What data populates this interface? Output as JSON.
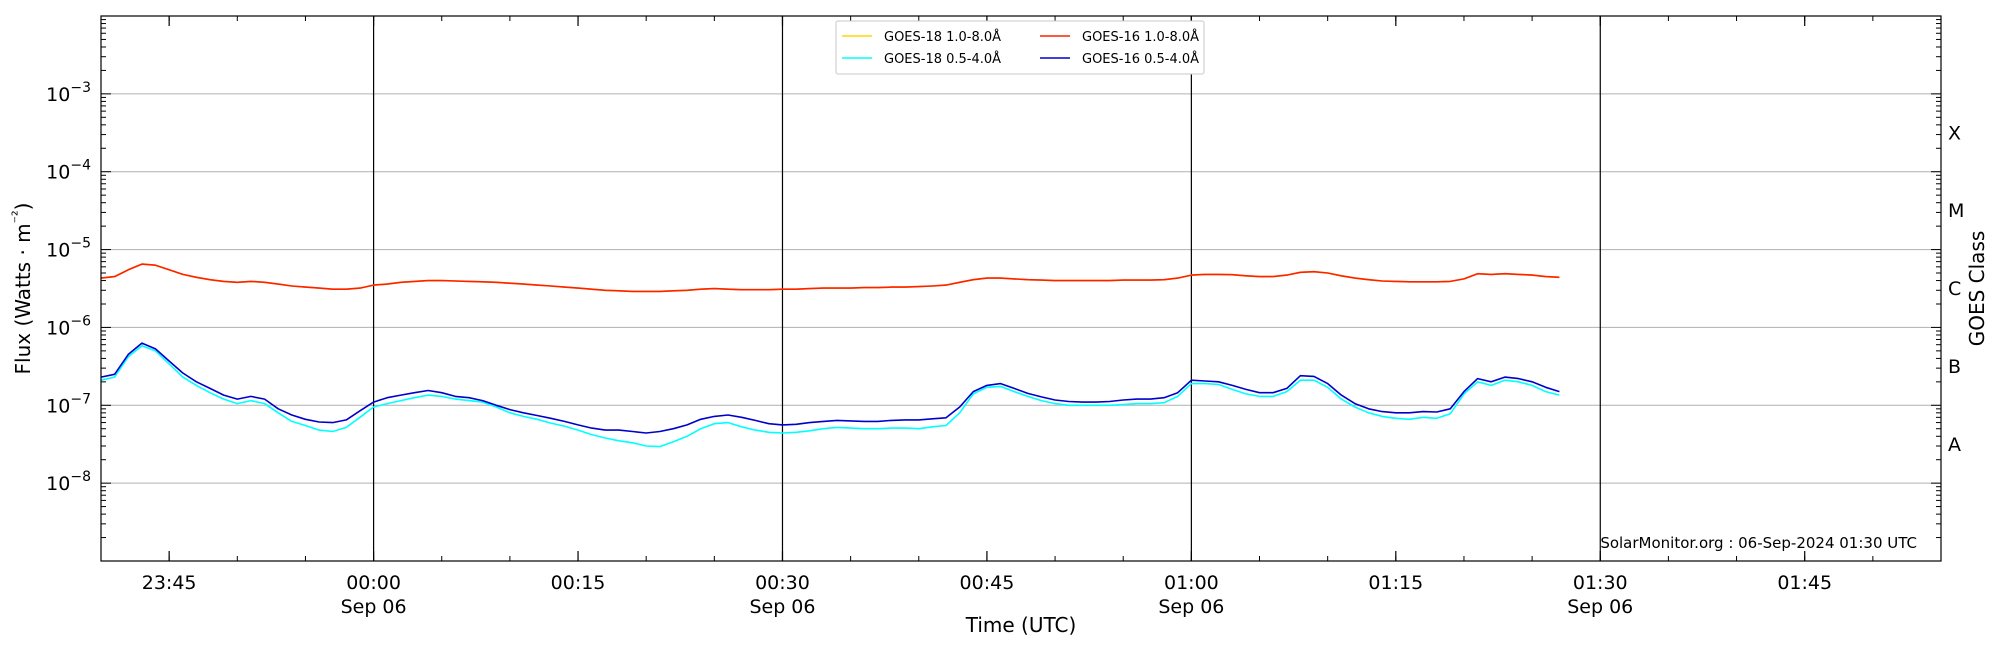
{
  "chart_data": {
    "type": "line",
    "xlabel": "Time (UTC)",
    "ylabel": "Flux (Watts · m⁻²)",
    "y2label": "GOES Class",
    "yscale": "log",
    "ylim": [
      1e-09,
      0.01
    ],
    "xlim": [
      "2024-09-05T23:40",
      "2024-09-06T01:55"
    ],
    "grid": "horizontal",
    "legend_position": "top-center",
    "y_ticks": [
      {
        "value": 1e-08,
        "base": "10",
        "exp": "−8"
      },
      {
        "value": 1e-07,
        "base": "10",
        "exp": "−7"
      },
      {
        "value": 1e-06,
        "base": "10",
        "exp": "−6"
      },
      {
        "value": 1e-05,
        "base": "10",
        "exp": "−5"
      },
      {
        "value": 0.0001,
        "base": "10",
        "exp": "−4"
      },
      {
        "value": 0.001,
        "base": "10",
        "exp": "−3"
      }
    ],
    "x_ticks": [
      {
        "time": "23:45",
        "label": "23:45",
        "date": ""
      },
      {
        "time": "00:00",
        "label": "00:00",
        "date": "Sep 06"
      },
      {
        "time": "00:15",
        "label": "00:15",
        "date": ""
      },
      {
        "time": "00:30",
        "label": "00:30",
        "date": "Sep 06"
      },
      {
        "time": "00:45",
        "label": "00:45",
        "date": ""
      },
      {
        "time": "01:00",
        "label": "01:00",
        "date": "Sep 06"
      },
      {
        "time": "01:15",
        "label": "01:15",
        "date": ""
      },
      {
        "time": "01:30",
        "label": "01:30",
        "date": "Sep 06"
      },
      {
        "time": "01:45",
        "label": "01:45",
        "date": ""
      }
    ],
    "vertical_lines": [
      "00:00",
      "00:30",
      "01:00",
      "01:30"
    ],
    "goes_classes": [
      {
        "label": "A",
        "value": 1e-08
      },
      {
        "label": "B",
        "value": 1e-07
      },
      {
        "label": "C",
        "value": 1e-06
      },
      {
        "label": "M",
        "value": 1e-05
      },
      {
        "label": "X",
        "value": 0.0001
      }
    ],
    "times": [
      "23:40",
      "23:41",
      "23:42",
      "23:43",
      "23:44",
      "23:45",
      "23:46",
      "23:47",
      "23:48",
      "23:49",
      "23:50",
      "23:51",
      "23:52",
      "23:53",
      "23:54",
      "23:55",
      "23:56",
      "23:57",
      "23:58",
      "23:59",
      "00:00",
      "00:01",
      "00:02",
      "00:03",
      "00:04",
      "00:05",
      "00:06",
      "00:07",
      "00:08",
      "00:09",
      "00:10",
      "00:11",
      "00:12",
      "00:13",
      "00:14",
      "00:15",
      "00:16",
      "00:17",
      "00:18",
      "00:19",
      "00:20",
      "00:21",
      "00:22",
      "00:23",
      "00:24",
      "00:25",
      "00:26",
      "00:27",
      "00:28",
      "00:29",
      "00:30",
      "00:31",
      "00:32",
      "00:33",
      "00:34",
      "00:35",
      "00:36",
      "00:37",
      "00:38",
      "00:39",
      "00:40",
      "00:41",
      "00:42",
      "00:43",
      "00:44",
      "00:45",
      "00:46",
      "00:47",
      "00:48",
      "00:49",
      "00:50",
      "00:51",
      "00:52",
      "00:53",
      "00:54",
      "00:55",
      "00:56",
      "00:57",
      "00:58",
      "00:59",
      "01:00",
      "01:01",
      "01:02",
      "01:03",
      "01:04",
      "01:05",
      "01:06",
      "01:07",
      "01:08",
      "01:09",
      "01:10",
      "01:11",
      "01:12",
      "01:13",
      "01:14",
      "01:15",
      "01:16",
      "01:17",
      "01:18",
      "01:19",
      "01:20",
      "01:21",
      "01:22",
      "01:23",
      "01:24",
      "01:25",
      "01:26",
      "01:27"
    ],
    "series": [
      {
        "name": "GOES-18 1.0-8.0Å",
        "color": "#ffd700",
        "values": [
          4.3e-06,
          4.5e-06,
          5.5e-06,
          6.5e-06,
          6.3e-06,
          5.5e-06,
          4.8e-06,
          4.4e-06,
          4.1e-06,
          3.9e-06,
          3.8e-06,
          3.9e-06,
          3.8e-06,
          3.6e-06,
          3.4e-06,
          3.3e-06,
          3.2e-06,
          3.1e-06,
          3.1e-06,
          3.2e-06,
          3.5e-06,
          3.6e-06,
          3.8e-06,
          3.9e-06,
          4e-06,
          4e-06,
          3.95e-06,
          3.9e-06,
          3.85e-06,
          3.8e-06,
          3.7e-06,
          3.6e-06,
          3.5e-06,
          3.4e-06,
          3.3e-06,
          3.2e-06,
          3.1e-06,
          3e-06,
          2.95e-06,
          2.9e-06,
          2.9e-06,
          2.9e-06,
          2.95e-06,
          3e-06,
          3.1e-06,
          3.15e-06,
          3.1e-06,
          3.05e-06,
          3.05e-06,
          3.05e-06,
          3.1e-06,
          3.1e-06,
          3.15e-06,
          3.2e-06,
          3.2e-06,
          3.2e-06,
          3.25e-06,
          3.25e-06,
          3.3e-06,
          3.3e-06,
          3.35e-06,
          3.4e-06,
          3.5e-06,
          3.8e-06,
          4.1e-06,
          4.3e-06,
          4.3e-06,
          4.2e-06,
          4.1e-06,
          4.05e-06,
          4e-06,
          4e-06,
          4e-06,
          4e-06,
          4e-06,
          4.05e-06,
          4.05e-06,
          4.05e-06,
          4.1e-06,
          4.3e-06,
          4.7e-06,
          4.8e-06,
          4.8e-06,
          4.75e-06,
          4.6e-06,
          4.5e-06,
          4.5e-06,
          4.7e-06,
          5.1e-06,
          5.2e-06,
          5e-06,
          4.6e-06,
          4.3e-06,
          4.1e-06,
          3.95e-06,
          3.9e-06,
          3.85e-06,
          3.85e-06,
          3.85e-06,
          3.9e-06,
          4.2e-06,
          4.9e-06,
          4.8e-06,
          4.9e-06,
          4.8e-06,
          4.7e-06,
          4.5e-06,
          4.4e-06
        ]
      },
      {
        "name": "GOES-16 1.0-8.0Å",
        "color": "#ff2000",
        "values": [
          4.3e-06,
          4.5e-06,
          5.5e-06,
          6.5e-06,
          6.3e-06,
          5.5e-06,
          4.8e-06,
          4.4e-06,
          4.1e-06,
          3.9e-06,
          3.8e-06,
          3.9e-06,
          3.8e-06,
          3.6e-06,
          3.4e-06,
          3.3e-06,
          3.2e-06,
          3.1e-06,
          3.1e-06,
          3.2e-06,
          3.5e-06,
          3.6e-06,
          3.8e-06,
          3.9e-06,
          4e-06,
          4e-06,
          3.95e-06,
          3.9e-06,
          3.85e-06,
          3.8e-06,
          3.7e-06,
          3.6e-06,
          3.5e-06,
          3.4e-06,
          3.3e-06,
          3.2e-06,
          3.1e-06,
          3e-06,
          2.95e-06,
          2.9e-06,
          2.9e-06,
          2.9e-06,
          2.95e-06,
          3e-06,
          3.1e-06,
          3.15e-06,
          3.1e-06,
          3.05e-06,
          3.05e-06,
          3.05e-06,
          3.1e-06,
          3.1e-06,
          3.15e-06,
          3.2e-06,
          3.2e-06,
          3.2e-06,
          3.25e-06,
          3.25e-06,
          3.3e-06,
          3.3e-06,
          3.35e-06,
          3.4e-06,
          3.5e-06,
          3.8e-06,
          4.1e-06,
          4.3e-06,
          4.3e-06,
          4.2e-06,
          4.1e-06,
          4.05e-06,
          4e-06,
          4e-06,
          4e-06,
          4e-06,
          4e-06,
          4.05e-06,
          4.05e-06,
          4.05e-06,
          4.1e-06,
          4.3e-06,
          4.7e-06,
          4.8e-06,
          4.8e-06,
          4.75e-06,
          4.6e-06,
          4.5e-06,
          4.5e-06,
          4.7e-06,
          5.1e-06,
          5.2e-06,
          5e-06,
          4.6e-06,
          4.3e-06,
          4.1e-06,
          3.95e-06,
          3.9e-06,
          3.85e-06,
          3.85e-06,
          3.85e-06,
          3.9e-06,
          4.2e-06,
          4.9e-06,
          4.8e-06,
          4.9e-06,
          4.8e-06,
          4.7e-06,
          4.5e-06,
          4.4e-06
        ]
      },
      {
        "name": "GOES-18 0.5-4.0Å",
        "color": "#00ffff",
        "values": [
          2.1e-07,
          2.3e-07,
          4.2e-07,
          5.8e-07,
          5e-07,
          3.4e-07,
          2.3e-07,
          1.8e-07,
          1.45e-07,
          1.2e-07,
          1.05e-07,
          1.15e-07,
          1.05e-07,
          8e-08,
          6.2e-08,
          5.5e-08,
          4.8e-08,
          4.6e-08,
          5.2e-08,
          7e-08,
          9.5e-08,
          1.05e-07,
          1.15e-07,
          1.25e-07,
          1.35e-07,
          1.3e-07,
          1.2e-07,
          1.15e-07,
          1.1e-07,
          9.5e-08,
          8e-08,
          7.2e-08,
          6.6e-08,
          5.9e-08,
          5.4e-08,
          4.8e-08,
          4.2e-08,
          3.8e-08,
          3.5e-08,
          3.3e-08,
          3e-08,
          2.95e-08,
          3.4e-08,
          4e-08,
          5e-08,
          5.8e-08,
          6e-08,
          5.3e-08,
          4.8e-08,
          4.5e-08,
          4.4e-08,
          4.5e-08,
          4.7e-08,
          5e-08,
          5.2e-08,
          5.1e-08,
          5e-08,
          5e-08,
          5.1e-08,
          5.1e-08,
          5e-08,
          5.3e-08,
          5.5e-08,
          8e-08,
          1.4e-07,
          1.7e-07,
          1.75e-07,
          1.5e-07,
          1.3e-07,
          1.15e-07,
          1.05e-07,
          1e-07,
          1e-07,
          1e-07,
          1e-07,
          1.02e-07,
          1.05e-07,
          1.05e-07,
          1.08e-07,
          1.3e-07,
          1.9e-07,
          1.9e-07,
          1.85e-07,
          1.6e-07,
          1.4e-07,
          1.3e-07,
          1.3e-07,
          1.5e-07,
          2.1e-07,
          2.1e-07,
          1.7e-07,
          1.2e-07,
          9.5e-08,
          8e-08,
          7.2e-08,
          6.8e-08,
          6.6e-08,
          7e-08,
          6.8e-08,
          7.8e-08,
          1.4e-07,
          2e-07,
          1.8e-07,
          2.1e-07,
          2e-07,
          1.8e-07,
          1.5e-07,
          1.35e-07
        ]
      },
      {
        "name": "GOES-16 0.5-4.0Å",
        "color": "#0000cc",
        "values": [
          2.3e-07,
          2.5e-07,
          4.5e-07,
          6.3e-07,
          5.3e-07,
          3.7e-07,
          2.6e-07,
          2e-07,
          1.65e-07,
          1.35e-07,
          1.2e-07,
          1.3e-07,
          1.2e-07,
          9e-08,
          7.5e-08,
          6.6e-08,
          6.1e-08,
          6e-08,
          6.5e-08,
          8.5e-08,
          1.1e-07,
          1.25e-07,
          1.35e-07,
          1.45e-07,
          1.55e-07,
          1.45e-07,
          1.3e-07,
          1.25e-07,
          1.15e-07,
          1e-07,
          8.8e-08,
          8e-08,
          7.4e-08,
          6.8e-08,
          6.2e-08,
          5.6e-08,
          5.1e-08,
          4.8e-08,
          4.8e-08,
          4.6e-08,
          4.4e-08,
          4.6e-08,
          5e-08,
          5.6e-08,
          6.6e-08,
          7.2e-08,
          7.5e-08,
          7e-08,
          6.4e-08,
          5.8e-08,
          5.6e-08,
          5.7e-08,
          6e-08,
          6.2e-08,
          6.4e-08,
          6.3e-08,
          6.2e-08,
          6.2e-08,
          6.4e-08,
          6.5e-08,
          6.5e-08,
          6.7e-08,
          6.9e-08,
          9.5e-08,
          1.5e-07,
          1.8e-07,
          1.9e-07,
          1.65e-07,
          1.42e-07,
          1.28e-07,
          1.17e-07,
          1.12e-07,
          1.1e-07,
          1.1e-07,
          1.12e-07,
          1.17e-07,
          1.2e-07,
          1.2e-07,
          1.25e-07,
          1.45e-07,
          2.1e-07,
          2.05e-07,
          2e-07,
          1.8e-07,
          1.6e-07,
          1.45e-07,
          1.45e-07,
          1.65e-07,
          2.4e-07,
          2.35e-07,
          1.9e-07,
          1.35e-07,
          1.05e-07,
          9e-08,
          8.3e-08,
          8e-08,
          8e-08,
          8.3e-08,
          8.2e-08,
          9e-08,
          1.5e-07,
          2.2e-07,
          2e-07,
          2.3e-07,
          2.2e-07,
          2e-07,
          1.7e-07,
          1.5e-07
        ]
      }
    ],
    "legend": [
      {
        "label": "GOES-18 1.0-8.0Å",
        "color": "#ffd700"
      },
      {
        "label": "GOES-18 0.5-4.0Å",
        "color": "#00ffff"
      },
      {
        "label": "GOES-16 1.0-8.0Å",
        "color": "#ff2000"
      },
      {
        "label": "GOES-16 0.5-4.0Å",
        "color": "#0000cc"
      }
    ],
    "credit": "SolarMonitor.org : 06-Sep-2024 01:30 UTC"
  }
}
